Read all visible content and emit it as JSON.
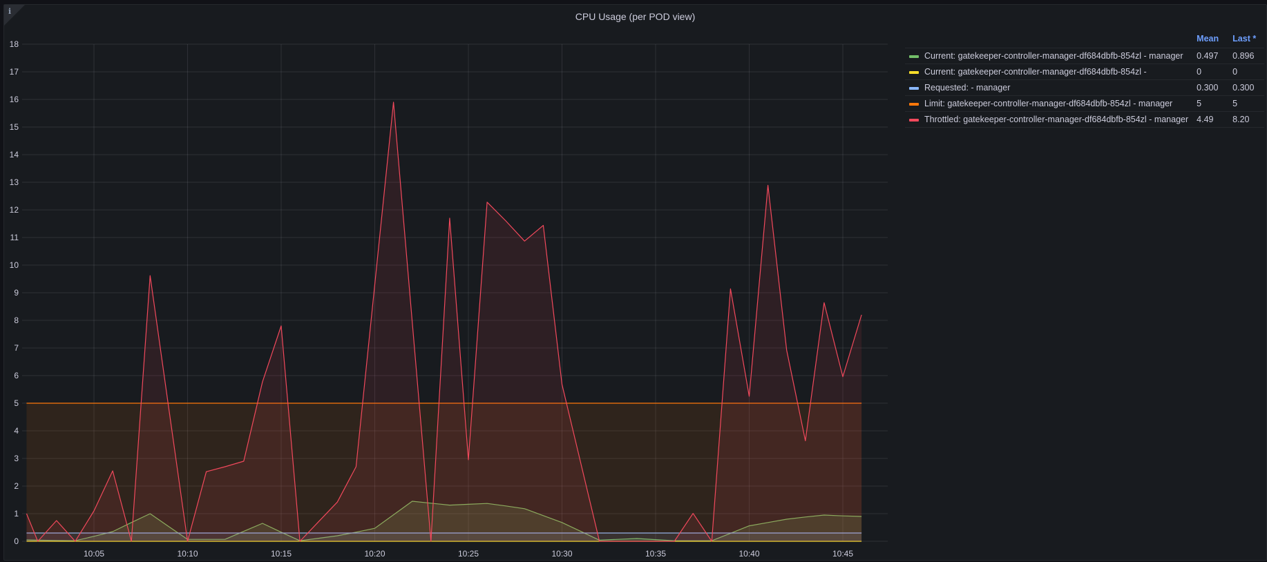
{
  "panel": {
    "title": "CPU Usage (per POD view)",
    "info_icon": "i"
  },
  "legend": {
    "headers": {
      "mean": "Mean",
      "last": "Last *"
    },
    "items": [
      {
        "label": "Current: gatekeeper-controller-manager-df684dbfb-854zl - manager",
        "color": "#73bf69",
        "mean": "0.497",
        "last": "0.896"
      },
      {
        "label": "Current: gatekeeper-controller-manager-df684dbfb-854zl -",
        "color": "#fade2a",
        "mean": "0",
        "last": "0"
      },
      {
        "label": "Requested: - manager",
        "color": "#8ab8ff",
        "mean": "0.300",
        "last": "0.300"
      },
      {
        "label": "Limit: gatekeeper-controller-manager-df684dbfb-854zl - manager",
        "color": "#ff780a",
        "mean": "5",
        "last": "5"
      },
      {
        "label": "Throttled: gatekeeper-controller-manager-df684dbfb-854zl - manager",
        "color": "#f2495c",
        "mean": "4.49",
        "last": "8.20"
      }
    ]
  },
  "chart_data": {
    "type": "area",
    "title": "CPU Usage (per POD view)",
    "xlabel": "",
    "ylabel": "",
    "ylim": [
      0,
      18
    ],
    "yticks": [
      "0",
      "1",
      "2",
      "3",
      "4",
      "5",
      "6",
      "7",
      "8",
      "9",
      "10",
      "11",
      "12",
      "13",
      "14",
      "15",
      "16",
      "17",
      "18"
    ],
    "xticks": [
      "10:05",
      "10:10",
      "10:15",
      "10:20",
      "10:25",
      "10:30",
      "10:35",
      "10:40",
      "10:45"
    ],
    "grid": true,
    "legend_position": "right",
    "x": [
      "10:01.4",
      "10:02",
      "10:03",
      "10:04",
      "10:05",
      "10:06",
      "10:07",
      "10:08",
      "10:09",
      "10:10",
      "10:11",
      "10:12",
      "10:13",
      "10:14",
      "10:15",
      "10:16",
      "10:17",
      "10:18",
      "10:19",
      "10:20",
      "10:21",
      "10:22",
      "10:23",
      "10:24",
      "10:25",
      "10:26",
      "10:27",
      "10:28",
      "10:29",
      "10:30",
      "10:31",
      "10:32",
      "10:33",
      "10:34",
      "10:35",
      "10:36",
      "10:37",
      "10:38",
      "10:39",
      "10:40",
      "10:41",
      "10:42",
      "10:43",
      "10:44",
      "10:45",
      "10:46"
    ],
    "series": [
      {
        "name": "Current: gatekeeper-controller-manager-df684dbfb-854zl - manager",
        "color": "#73bf69",
        "values": [
          0.05,
          0.04,
          0.03,
          0.02,
          0.18,
          0.35,
          0.68,
          1.0,
          0.53,
          0.07,
          0.07,
          0.07,
          0.36,
          0.65,
          0.33,
          0.02,
          0.11,
          0.2,
          0.33,
          0.47,
          0.96,
          1.45,
          1.38,
          1.31,
          1.34,
          1.37,
          1.28,
          1.18,
          0.93,
          0.68,
          0.36,
          0.04,
          0.07,
          0.1,
          0.06,
          0.02,
          0.02,
          0.02,
          0.29,
          0.56,
          0.68,
          0.8,
          0.88,
          0.95,
          0.92,
          0.9
        ]
      },
      {
        "name": "Current: gatekeeper-controller-manager-df684dbfb-854zl -",
        "color": "#fade2a",
        "values": [
          0,
          0,
          0,
          0,
          0,
          0,
          0,
          0,
          0,
          0,
          0,
          0,
          0,
          0,
          0,
          0,
          0,
          0,
          0,
          0,
          0,
          0,
          0,
          0,
          0,
          0,
          0,
          0,
          0,
          0,
          0,
          0,
          0,
          0,
          0,
          0,
          0,
          0,
          0,
          0,
          0,
          0,
          0,
          0,
          0,
          0
        ]
      },
      {
        "name": "Requested: - manager",
        "color": "#8ab8ff",
        "values": [
          0.3,
          0.3,
          0.3,
          0.3,
          0.3,
          0.3,
          0.3,
          0.3,
          0.3,
          0.3,
          0.3,
          0.3,
          0.3,
          0.3,
          0.3,
          0.3,
          0.3,
          0.3,
          0.3,
          0.3,
          0.3,
          0.3,
          0.3,
          0.3,
          0.3,
          0.3,
          0.3,
          0.3,
          0.3,
          0.3,
          0.3,
          0.3,
          0.3,
          0.3,
          0.3,
          0.3,
          0.3,
          0.3,
          0.3,
          0.3,
          0.3,
          0.3,
          0.3,
          0.3,
          0.3,
          0.3
        ]
      },
      {
        "name": "Limit: gatekeeper-controller-manager-df684dbfb-854zl - manager",
        "color": "#ff780a",
        "values": [
          5,
          5,
          5,
          5,
          5,
          5,
          5,
          5,
          5,
          5,
          5,
          5,
          5,
          5,
          5,
          5,
          5,
          5,
          5,
          5,
          5,
          5,
          5,
          5,
          5,
          5,
          5,
          5,
          5,
          5,
          5,
          5,
          5,
          5,
          5,
          5,
          5,
          5,
          5,
          5,
          5,
          5,
          5,
          5,
          5,
          5
        ]
      },
      {
        "name": "Throttled: gatekeeper-controller-manager-df684dbfb-854zl - manager",
        "color": "#f2495c",
        "values": [
          1.0,
          0,
          0.75,
          0,
          1.1,
          2.55,
          0,
          9.62,
          4.8,
          0,
          2.52,
          2.7,
          2.9,
          5.77,
          7.8,
          0,
          0.71,
          1.42,
          2.7,
          9.3,
          15.9,
          7.95,
          0,
          11.7,
          2.95,
          12.28,
          11.6,
          10.87,
          11.44,
          5.68,
          2.84,
          0,
          0,
          0,
          0,
          0,
          1.01,
          0,
          9.14,
          5.25,
          12.89,
          6.92,
          3.64,
          8.64,
          5.96,
          8.2
        ]
      }
    ]
  }
}
